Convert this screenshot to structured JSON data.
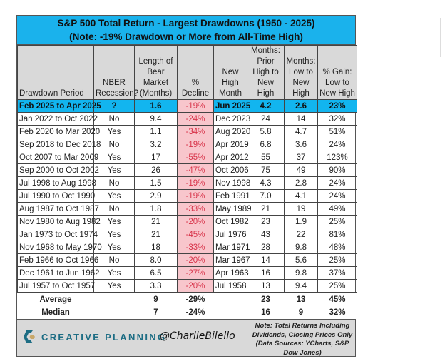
{
  "title": {
    "line1": "S&P 500 Total Return -  Largest Drawdowns (1950 - 2025)",
    "line2": "(Note: -19% Drawdown or More from All-Time High)"
  },
  "headers": [
    "Drawdown Period",
    "NBER Recession?",
    "Length of Bear Market (Months)",
    "% Decline",
    "New High Month",
    "Months: Prior High to New High",
    "Months: Low to New High",
    "% Gain: Low to New High"
  ],
  "rows": [
    [
      "Feb 2025 to Apr 2025",
      "?",
      "1.6",
      "-19%",
      "Jun 2025",
      "4.2",
      "2.6",
      "23%"
    ],
    [
      "Jan 2022 to Oct 2022",
      "No",
      "9.4",
      "-24%",
      "Dec 2023",
      "24",
      "14",
      "32%"
    ],
    [
      "Feb 2020 to Mar 2020",
      "Yes",
      "1.1",
      "-34%",
      "Aug 2020",
      "5.8",
      "4.7",
      "51%"
    ],
    [
      "Sep 2018 to Dec 2018",
      "No",
      "3.2",
      "-19%",
      "Apr 2019",
      "6.8",
      "3.6",
      "24%"
    ],
    [
      "Oct 2007 to Mar 2009",
      "Yes",
      "17",
      "-55%",
      "Apr 2012",
      "55",
      "37",
      "123%"
    ],
    [
      "Sep 2000 to Oct 2002",
      "Yes",
      "26",
      "-47%",
      "Oct 2006",
      "75",
      "49",
      "90%"
    ],
    [
      "Jul 1998 to Aug 1998",
      "No",
      "1.5",
      "-19%",
      "Nov 1998",
      "4.3",
      "2.8",
      "24%"
    ],
    [
      "Jul 1990 to Oct 1990",
      "Yes",
      "2.9",
      "-19%",
      "Feb 1991",
      "7.0",
      "4.1",
      "24%"
    ],
    [
      "Aug 1987 to Oct 1987",
      "No",
      "1.8",
      "-33%",
      "May 1989",
      "21",
      "19",
      "49%"
    ],
    [
      "Nov 1980 to Aug 1982",
      "Yes",
      "21",
      "-20%",
      "Oct 1982",
      "23",
      "1.9",
      "25%"
    ],
    [
      "Jan 1973 to Oct 1974",
      "Yes",
      "21",
      "-45%",
      "Jul 1976",
      "43",
      "22",
      "81%"
    ],
    [
      "Nov 1968 to May 1970",
      "Yes",
      "18",
      "-33%",
      "Mar 1971",
      "28",
      "9.8",
      "48%"
    ],
    [
      "Feb 1966 to Oct 1966",
      "No",
      "8.0",
      "-20%",
      "Mar 1967",
      "14",
      "5.6",
      "25%"
    ],
    [
      "Dec 1961 to Jun 1962",
      "Yes",
      "6.5",
      "-27%",
      "Apr 1963",
      "16",
      "9.8",
      "37%"
    ],
    [
      "Jul 1957 to Oct 1957",
      "Yes",
      "3.3",
      "-20%",
      "Jul 1958",
      "13",
      "9.4",
      "25%"
    ]
  ],
  "stats": [
    [
      "Average",
      "",
      "9",
      "-29%",
      "",
      "23",
      "13",
      "45%"
    ],
    [
      "Median",
      "",
      "7",
      "-24%",
      "",
      "16",
      "9",
      "32%"
    ]
  ],
  "footer": {
    "logo": "CREATIVE PLANNING",
    "handle": "@CharlieBilello",
    "note": "Note: Total Returns Including Dividends, Closing Prices Only (Data Sources: YCharts, S&P Dow Jones)"
  },
  "colors": {
    "title_bg": "#1ab2ec",
    "highlight_row": "#12b5ef",
    "decline_bg": "#f8c6cc",
    "decline_text": "#d8344a",
    "header_bg": "#d9d9d9",
    "logo": "#1d6d84"
  }
}
